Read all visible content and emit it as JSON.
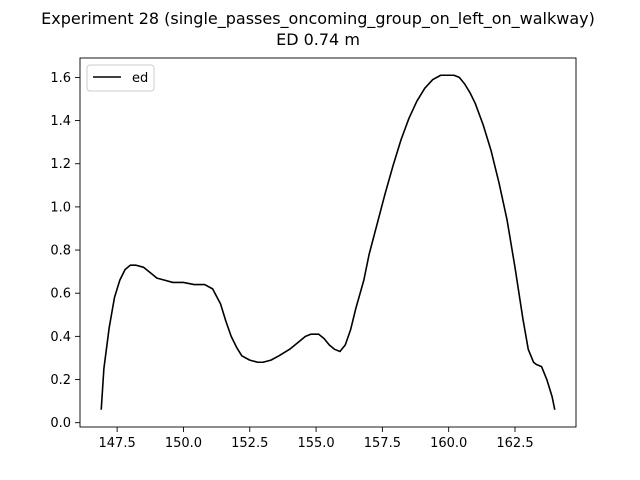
{
  "chart_data": {
    "type": "line",
    "title": "Experiment 28 (single_passes_oncoming_group_on_left_on_walkway)",
    "subtitle": "ED 0.74 m",
    "xlabel": "",
    "ylabel": "",
    "xlim": [
      146.1,
      164.8
    ],
    "ylim": [
      -0.02,
      1.69
    ],
    "x_ticks": [
      147.5,
      150.0,
      152.5,
      155.0,
      157.5,
      160.0,
      162.5
    ],
    "x_tick_labels": [
      "147.5",
      "150.0",
      "152.5",
      "155.0",
      "157.5",
      "160.0",
      "162.5"
    ],
    "y_ticks": [
      0.0,
      0.2,
      0.4,
      0.6,
      0.8,
      1.0,
      1.2,
      1.4,
      1.6
    ],
    "y_tick_labels": [
      "0.0",
      "0.2",
      "0.4",
      "0.6",
      "0.8",
      "1.0",
      "1.2",
      "1.4",
      "1.6"
    ],
    "grid": false,
    "legend_position": "top-left",
    "series": [
      {
        "name": "ed",
        "color": "#000000",
        "x": [
          146.9,
          147.0,
          147.2,
          147.4,
          147.6,
          147.8,
          148.0,
          148.2,
          148.5,
          148.8,
          149.0,
          149.3,
          149.6,
          150.0,
          150.4,
          150.8,
          151.1,
          151.4,
          151.6,
          151.8,
          152.0,
          152.2,
          152.5,
          152.8,
          153.0,
          153.3,
          153.6,
          154.0,
          154.3,
          154.6,
          154.8,
          155.1,
          155.3,
          155.5,
          155.7,
          155.9,
          156.1,
          156.3,
          156.5,
          156.8,
          157.0,
          157.3,
          157.6,
          157.9,
          158.2,
          158.5,
          158.8,
          159.1,
          159.4,
          159.7,
          160.0,
          160.2,
          160.4,
          160.6,
          160.8,
          161.0,
          161.3,
          161.6,
          161.9,
          162.2,
          162.5,
          162.8,
          163.0,
          163.2,
          163.3,
          163.5,
          163.7,
          163.9,
          164.0
        ],
        "y": [
          0.06,
          0.25,
          0.44,
          0.58,
          0.66,
          0.71,
          0.73,
          0.73,
          0.72,
          0.69,
          0.67,
          0.66,
          0.65,
          0.65,
          0.64,
          0.64,
          0.62,
          0.55,
          0.47,
          0.4,
          0.35,
          0.31,
          0.29,
          0.28,
          0.28,
          0.29,
          0.31,
          0.34,
          0.37,
          0.4,
          0.41,
          0.41,
          0.39,
          0.36,
          0.34,
          0.33,
          0.36,
          0.43,
          0.53,
          0.66,
          0.78,
          0.92,
          1.06,
          1.19,
          1.31,
          1.41,
          1.49,
          1.55,
          1.59,
          1.61,
          1.61,
          1.61,
          1.6,
          1.57,
          1.53,
          1.48,
          1.38,
          1.26,
          1.11,
          0.94,
          0.72,
          0.48,
          0.34,
          0.28,
          0.27,
          0.26,
          0.2,
          0.12,
          0.06
        ]
      }
    ]
  }
}
